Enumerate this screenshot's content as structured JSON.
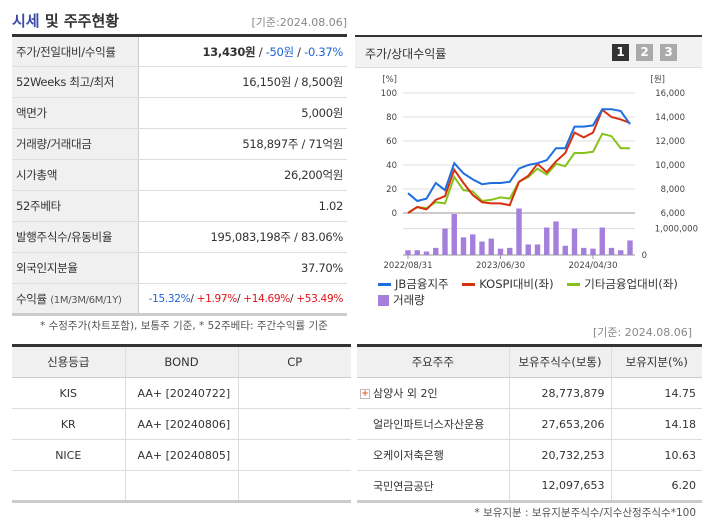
{
  "header": {
    "title_hl": "시세",
    "title_rest": " 및 주주현황",
    "date": "[기준:2024.08.06]"
  },
  "snapshot": [
    {
      "label": "주가/전일대비/수익률",
      "price": "13,430원",
      "sep": " / ",
      "change": "-50원",
      "sep2": " / ",
      "rate": "-0.37%"
    },
    {
      "label": "52Weeks 최고/최저",
      "value": "16,150원 / 8,500원"
    },
    {
      "label": "액면가",
      "value": "5,000원"
    },
    {
      "label": "거래량/거래대금",
      "value": "518,897주 / 71억원"
    },
    {
      "label": "시가총액",
      "value": "26,200억원"
    },
    {
      "label": "52주베타",
      "value": "1.02"
    },
    {
      "label": "발행주식수/유동비율",
      "value": "195,083,198주 / 83.06%"
    },
    {
      "label": "외국인지분율",
      "value": "37.70%"
    },
    {
      "label": "수익률",
      "label_sub": "(1M/3M/6M/1Y)",
      "r1": "-15.32%",
      "r2": "+1.97%",
      "r3": "+14.69%",
      "r4": "+53.49%"
    }
  ],
  "note1": "* 수정주가(차트포함), 보통주 기준, * 52주베타: 주간수익률 기준",
  "chart_panel": {
    "title": "주가/상대수익률",
    "pages": [
      "1",
      "2",
      "3"
    ],
    "active_page": "1"
  },
  "chart_data": {
    "type": "line",
    "left_unit": "[%]",
    "right_unit": "[원]",
    "left_ticks": [
      "100",
      "80",
      "60",
      "40",
      "20",
      "0"
    ],
    "right_ticks": [
      "16,000",
      "14,000",
      "12,000",
      "10,000",
      "8,000",
      "6,000"
    ],
    "ylim_left": [
      0,
      100
    ],
    "ylim_right": [
      6000,
      16000
    ],
    "volume_ticks": [
      "1,000,000",
      "0"
    ],
    "volume_ylim": [
      0,
      1400000
    ],
    "x_labels": [
      {
        "index": 0,
        "label": "2022/08/31"
      },
      {
        "index": 10,
        "label": "2023/06/30"
      },
      {
        "index": 20,
        "label": "2024/04/30"
      }
    ],
    "series": [
      {
        "name": "JB금융지주",
        "color": "#1f6ee0",
        "values": [
          16.5,
          10,
          12,
          25,
          19,
          41.5,
          33,
          28,
          24,
          25,
          25,
          26,
          37,
          40,
          41.5,
          44,
          54,
          54,
          72,
          72,
          73,
          86.5,
          86.5,
          85,
          74
        ]
      },
      {
        "name": "KOSPI대비(좌)",
        "color": "#d8300f",
        "values": [
          0,
          5,
          3,
          11,
          14,
          36,
          25,
          15,
          9,
          8,
          8,
          6.5,
          26,
          31,
          41,
          34,
          43,
          50,
          67,
          63,
          67,
          86,
          80,
          78,
          75
        ]
      },
      {
        "name": "기타금융업대비(좌)",
        "color": "#86c21a",
        "values": [
          0,
          5,
          4,
          9,
          8,
          30,
          19,
          18,
          10,
          11,
          13,
          12,
          26,
          30,
          37,
          32,
          41,
          39,
          50,
          50,
          51,
          66,
          64,
          54,
          54
        ]
      }
    ],
    "volume": {
      "name": "거래량",
      "color": "#a57fdc",
      "values": [
        180000,
        180000,
        130000,
        270000,
        1000000,
        1550000,
        670000,
        780000,
        510000,
        620000,
        240000,
        270000,
        1760000,
        400000,
        400000,
        1040000,
        1270000,
        350000,
        1000000,
        270000,
        240000,
        1040000,
        270000,
        180000,
        550000
      ]
    },
    "grid": true
  },
  "date2": "[기준: 2024.08.06]",
  "credit": {
    "headers": [
      "신용등급",
      "BOND",
      "CP"
    ],
    "rows": [
      [
        "KIS",
        "AA+ [20240722]",
        ""
      ],
      [
        "KR",
        "AA+ [20240806]",
        ""
      ],
      [
        "NICE",
        "AA+ [20240805]",
        ""
      ],
      [
        "",
        "",
        ""
      ]
    ]
  },
  "holders": {
    "headers": [
      "주요주주",
      "보유주식수(보통)",
      "보유지분(%)"
    ],
    "rows": [
      {
        "name": "삼양사 외 2인",
        "shares": "28,773,879",
        "pct": "14.75",
        "expand": true
      },
      {
        "name": "얼라인파트너스자산운용",
        "shares": "27,653,206",
        "pct": "14.18"
      },
      {
        "name": "오케이저축은행",
        "shares": "20,732,253",
        "pct": "10.63"
      },
      {
        "name": "국민연금공단",
        "shares": "12,097,653",
        "pct": "6.20"
      }
    ]
  },
  "note2": "* 보유지분 : 보유지분주식수/지수산정주식수*100"
}
